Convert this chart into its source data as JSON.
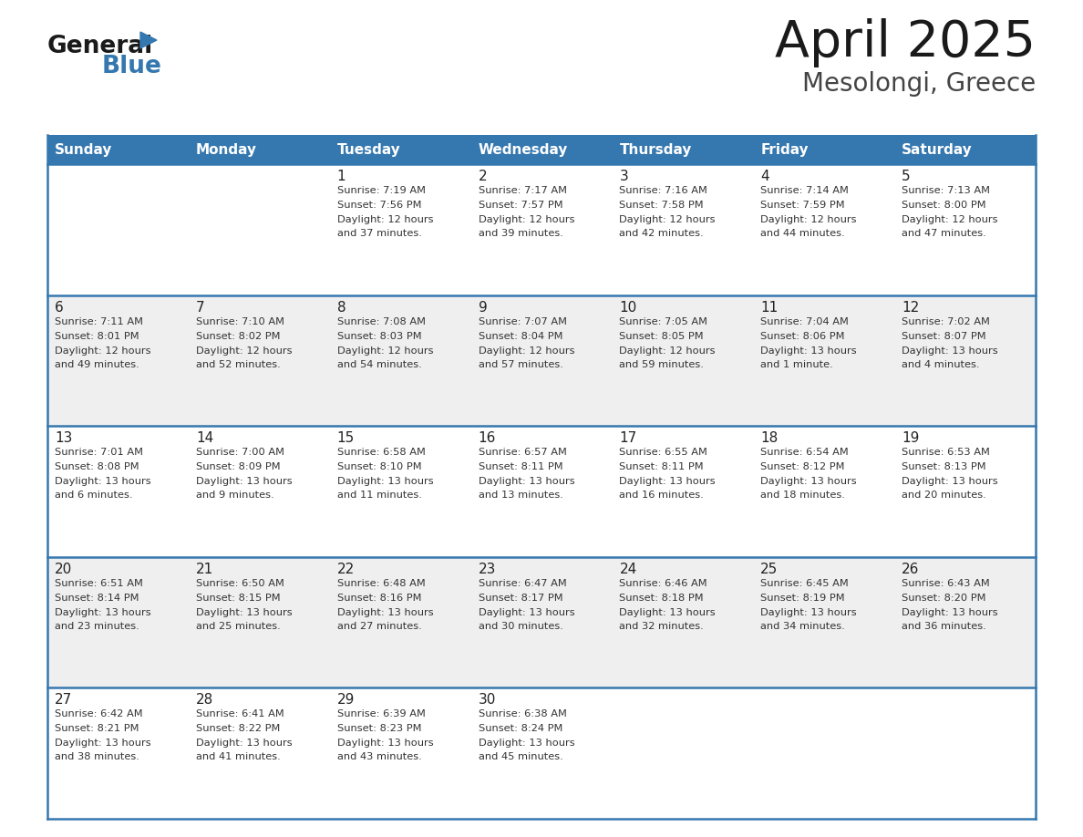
{
  "title": "April 2025",
  "subtitle": "Mesolongi, Greece",
  "header_bg_color": "#3578b0",
  "header_text_color": "#ffffff",
  "row_bg_light": "#efefef",
  "row_bg_white": "#ffffff",
  "border_color": "#3578b0",
  "text_color_dark": "#222222",
  "text_color_body": "#333333",
  "day_headers": [
    "Sunday",
    "Monday",
    "Tuesday",
    "Wednesday",
    "Thursday",
    "Friday",
    "Saturday"
  ],
  "calendar_data": [
    [
      {
        "day": "",
        "sunrise": "",
        "sunset": "",
        "daylight": ""
      },
      {
        "day": "",
        "sunrise": "",
        "sunset": "",
        "daylight": ""
      },
      {
        "day": "1",
        "sunrise": "Sunrise: 7:19 AM",
        "sunset": "Sunset: 7:56 PM",
        "daylight": "Daylight: 12 hours\nand 37 minutes."
      },
      {
        "day": "2",
        "sunrise": "Sunrise: 7:17 AM",
        "sunset": "Sunset: 7:57 PM",
        "daylight": "Daylight: 12 hours\nand 39 minutes."
      },
      {
        "day": "3",
        "sunrise": "Sunrise: 7:16 AM",
        "sunset": "Sunset: 7:58 PM",
        "daylight": "Daylight: 12 hours\nand 42 minutes."
      },
      {
        "day": "4",
        "sunrise": "Sunrise: 7:14 AM",
        "sunset": "Sunset: 7:59 PM",
        "daylight": "Daylight: 12 hours\nand 44 minutes."
      },
      {
        "day": "5",
        "sunrise": "Sunrise: 7:13 AM",
        "sunset": "Sunset: 8:00 PM",
        "daylight": "Daylight: 12 hours\nand 47 minutes."
      }
    ],
    [
      {
        "day": "6",
        "sunrise": "Sunrise: 7:11 AM",
        "sunset": "Sunset: 8:01 PM",
        "daylight": "Daylight: 12 hours\nand 49 minutes."
      },
      {
        "day": "7",
        "sunrise": "Sunrise: 7:10 AM",
        "sunset": "Sunset: 8:02 PM",
        "daylight": "Daylight: 12 hours\nand 52 minutes."
      },
      {
        "day": "8",
        "sunrise": "Sunrise: 7:08 AM",
        "sunset": "Sunset: 8:03 PM",
        "daylight": "Daylight: 12 hours\nand 54 minutes."
      },
      {
        "day": "9",
        "sunrise": "Sunrise: 7:07 AM",
        "sunset": "Sunset: 8:04 PM",
        "daylight": "Daylight: 12 hours\nand 57 minutes."
      },
      {
        "day": "10",
        "sunrise": "Sunrise: 7:05 AM",
        "sunset": "Sunset: 8:05 PM",
        "daylight": "Daylight: 12 hours\nand 59 minutes."
      },
      {
        "day": "11",
        "sunrise": "Sunrise: 7:04 AM",
        "sunset": "Sunset: 8:06 PM",
        "daylight": "Daylight: 13 hours\nand 1 minute."
      },
      {
        "day": "12",
        "sunrise": "Sunrise: 7:02 AM",
        "sunset": "Sunset: 8:07 PM",
        "daylight": "Daylight: 13 hours\nand 4 minutes."
      }
    ],
    [
      {
        "day": "13",
        "sunrise": "Sunrise: 7:01 AM",
        "sunset": "Sunset: 8:08 PM",
        "daylight": "Daylight: 13 hours\nand 6 minutes."
      },
      {
        "day": "14",
        "sunrise": "Sunrise: 7:00 AM",
        "sunset": "Sunset: 8:09 PM",
        "daylight": "Daylight: 13 hours\nand 9 minutes."
      },
      {
        "day": "15",
        "sunrise": "Sunrise: 6:58 AM",
        "sunset": "Sunset: 8:10 PM",
        "daylight": "Daylight: 13 hours\nand 11 minutes."
      },
      {
        "day": "16",
        "sunrise": "Sunrise: 6:57 AM",
        "sunset": "Sunset: 8:11 PM",
        "daylight": "Daylight: 13 hours\nand 13 minutes."
      },
      {
        "day": "17",
        "sunrise": "Sunrise: 6:55 AM",
        "sunset": "Sunset: 8:11 PM",
        "daylight": "Daylight: 13 hours\nand 16 minutes."
      },
      {
        "day": "18",
        "sunrise": "Sunrise: 6:54 AM",
        "sunset": "Sunset: 8:12 PM",
        "daylight": "Daylight: 13 hours\nand 18 minutes."
      },
      {
        "day": "19",
        "sunrise": "Sunrise: 6:53 AM",
        "sunset": "Sunset: 8:13 PM",
        "daylight": "Daylight: 13 hours\nand 20 minutes."
      }
    ],
    [
      {
        "day": "20",
        "sunrise": "Sunrise: 6:51 AM",
        "sunset": "Sunset: 8:14 PM",
        "daylight": "Daylight: 13 hours\nand 23 minutes."
      },
      {
        "day": "21",
        "sunrise": "Sunrise: 6:50 AM",
        "sunset": "Sunset: 8:15 PM",
        "daylight": "Daylight: 13 hours\nand 25 minutes."
      },
      {
        "day": "22",
        "sunrise": "Sunrise: 6:48 AM",
        "sunset": "Sunset: 8:16 PM",
        "daylight": "Daylight: 13 hours\nand 27 minutes."
      },
      {
        "day": "23",
        "sunrise": "Sunrise: 6:47 AM",
        "sunset": "Sunset: 8:17 PM",
        "daylight": "Daylight: 13 hours\nand 30 minutes."
      },
      {
        "day": "24",
        "sunrise": "Sunrise: 6:46 AM",
        "sunset": "Sunset: 8:18 PM",
        "daylight": "Daylight: 13 hours\nand 32 minutes."
      },
      {
        "day": "25",
        "sunrise": "Sunrise: 6:45 AM",
        "sunset": "Sunset: 8:19 PM",
        "daylight": "Daylight: 13 hours\nand 34 minutes."
      },
      {
        "day": "26",
        "sunrise": "Sunrise: 6:43 AM",
        "sunset": "Sunset: 8:20 PM",
        "daylight": "Daylight: 13 hours\nand 36 minutes."
      }
    ],
    [
      {
        "day": "27",
        "sunrise": "Sunrise: 6:42 AM",
        "sunset": "Sunset: 8:21 PM",
        "daylight": "Daylight: 13 hours\nand 38 minutes."
      },
      {
        "day": "28",
        "sunrise": "Sunrise: 6:41 AM",
        "sunset": "Sunset: 8:22 PM",
        "daylight": "Daylight: 13 hours\nand 41 minutes."
      },
      {
        "day": "29",
        "sunrise": "Sunrise: 6:39 AM",
        "sunset": "Sunset: 8:23 PM",
        "daylight": "Daylight: 13 hours\nand 43 minutes."
      },
      {
        "day": "30",
        "sunrise": "Sunrise: 6:38 AM",
        "sunset": "Sunset: 8:24 PM",
        "daylight": "Daylight: 13 hours\nand 45 minutes."
      },
      {
        "day": "",
        "sunrise": "",
        "sunset": "",
        "daylight": ""
      },
      {
        "day": "",
        "sunrise": "",
        "sunset": "",
        "daylight": ""
      },
      {
        "day": "",
        "sunrise": "",
        "sunset": "",
        "daylight": ""
      }
    ]
  ],
  "logo_general_color": "#1a1a1a",
  "logo_blue_color": "#3578b0",
  "logo_triangle_color": "#3578b0",
  "fig_width": 11.88,
  "fig_height": 9.18,
  "dpi": 100
}
